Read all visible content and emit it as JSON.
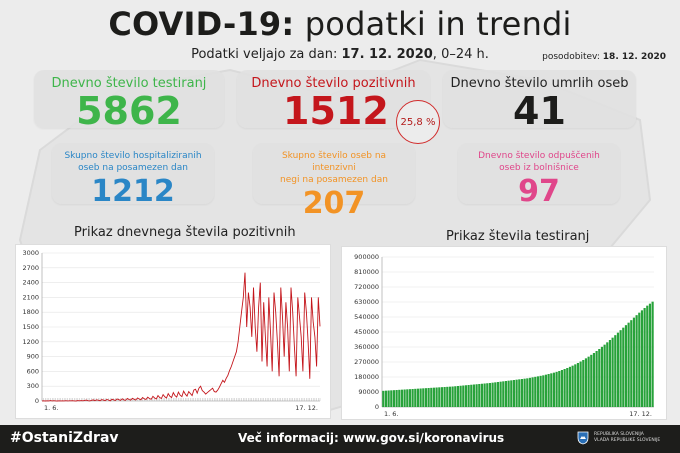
{
  "header": {
    "title_bold": "COVID-19:",
    "title_rest": "podatki in trendi",
    "subtitle_prefix": "Podatki veljajo za dan:",
    "subtitle_date": "17. 12. 2020",
    "subtitle_range": "0–24 h.",
    "updated_label": "posodobitev:",
    "updated_date": "18. 12. 2020"
  },
  "cards": {
    "tested": {
      "label": "Dnevno število testiranj",
      "value": "5862",
      "color": "#3eb54a"
    },
    "positive": {
      "label": "Dnevno število pozitivnih",
      "value": "1512",
      "color": "#c4161c"
    },
    "positive_pct": "25,8 %",
    "deaths": {
      "label": "Dnevno število umrlih oseb",
      "value": "41",
      "color": "#1d1d1b"
    },
    "hospital": {
      "label_line1": "Skupno število hospitaliziranih",
      "label_line2": "oseb na posamezen dan",
      "value": "1212",
      "color": "#2a86c6"
    },
    "icu": {
      "label_line1": "Skupno število oseb na intenzivni",
      "label_line2": "negi na posamezen dan",
      "value": "207",
      "color": "#f29325"
    },
    "released": {
      "label_line1": "Dnevno število odpuščenih",
      "label_line2": "oseb iz bolnišnice",
      "value": "97",
      "color": "#e0468a"
    }
  },
  "chart_data": [
    {
      "type": "line",
      "title": "Prikaz dnevnega števila pozitivnih",
      "ylim": [
        0,
        3000
      ],
      "yticks": [
        "3000",
        "2700",
        "2400",
        "2100",
        "1800",
        "1500",
        "1200",
        "900",
        "600",
        "300",
        "0"
      ],
      "x_start_label": "1. 6.",
      "x_end_label": "17. 12.",
      "color": "#c4161c",
      "values": [
        2,
        5,
        1,
        4,
        3,
        8,
        2,
        6,
        3,
        1,
        5,
        2,
        4,
        3,
        7,
        2,
        5,
        4,
        6,
        3,
        1,
        8,
        5,
        9,
        4,
        12,
        18,
        7,
        3,
        15,
        22,
        9,
        25,
        16,
        6,
        28,
        19,
        8,
        30,
        21,
        5,
        35,
        25,
        10,
        40,
        28,
        12,
        45,
        22,
        15,
        50,
        30,
        18,
        55,
        35,
        20,
        60,
        40,
        25,
        70,
        45,
        30,
        80,
        50,
        35,
        95,
        60,
        40,
        110,
        70,
        50,
        130,
        85,
        60,
        150,
        95,
        70,
        170,
        110,
        80,
        180,
        120,
        90,
        200,
        140,
        100,
        190,
        150,
        110,
        220,
        240,
        160,
        260,
        300,
        210,
        180,
        140,
        170,
        200,
        230,
        260,
        190,
        180,
        220,
        280,
        350,
        420,
        380,
        460,
        520,
        620,
        700,
        800,
        900,
        1000,
        1200,
        1500,
        1800,
        2100,
        2600,
        1500,
        2200,
        1900,
        1300,
        2300,
        1500,
        1000,
        1900,
        2400,
        800,
        2000,
        1300,
        700,
        2100,
        1400,
        600,
        2200,
        1800,
        1200,
        500,
        2300,
        1700,
        900,
        2000,
        1500,
        600,
        2300,
        1800,
        1100,
        500,
        2100,
        1700,
        1300,
        600,
        2200,
        1800,
        1200,
        450,
        2100,
        1600,
        1300,
        700,
        2100,
        1512
      ]
    },
    {
      "type": "bar",
      "title": "Prikaz števila testiranj",
      "ylim": [
        0,
        900000
      ],
      "yticks": [
        "900000",
        "810000",
        "720000",
        "630000",
        "540000",
        "450000",
        "360000",
        "270000",
        "180000",
        "90000",
        "0"
      ],
      "x_start_label": "1. 6.",
      "x_end_label": "17. 12.",
      "color": "#27a23a",
      "values": [
        97000,
        98000,
        99000,
        100000,
        101000,
        102000,
        103000,
        104000,
        105000,
        106000,
        107000,
        108000,
        109000,
        110000,
        111000,
        112000,
        113000,
        114000,
        115000,
        116000,
        117000,
        118000,
        119000,
        120000,
        121000,
        122000,
        123000,
        124500,
        126000,
        127500,
        129000,
        130500,
        132000,
        133500,
        135000,
        136500,
        138000,
        139500,
        141000,
        142500,
        144000,
        146000,
        148000,
        150000,
        152000,
        154000,
        156000,
        158000,
        160000,
        162000,
        164000,
        166000,
        168000,
        170000,
        172000,
        175000,
        178000,
        181000,
        184000,
        187000,
        190000,
        194000,
        198000,
        202000,
        206000,
        211000,
        216000,
        222000,
        228000,
        234000,
        241000,
        248000,
        256000,
        264000,
        273000,
        282000,
        292000,
        302000,
        313000,
        324000,
        336000,
        348000,
        361000,
        374000,
        388000,
        402000,
        416000,
        431000,
        446000,
        461000,
        476000,
        491000,
        506000,
        521000,
        536000,
        551000,
        566000,
        580000,
        594000,
        608000,
        620000,
        632000
      ]
    }
  ],
  "footer": {
    "hashtag": "#OstaniZdrav",
    "more_info": "Več informacij: www.gov.si/koronavirus",
    "gov_line1": "REPUBLIKA SLOVENIJA",
    "gov_line2": "VLADA REPUBLIKE SLOVENIJE"
  }
}
